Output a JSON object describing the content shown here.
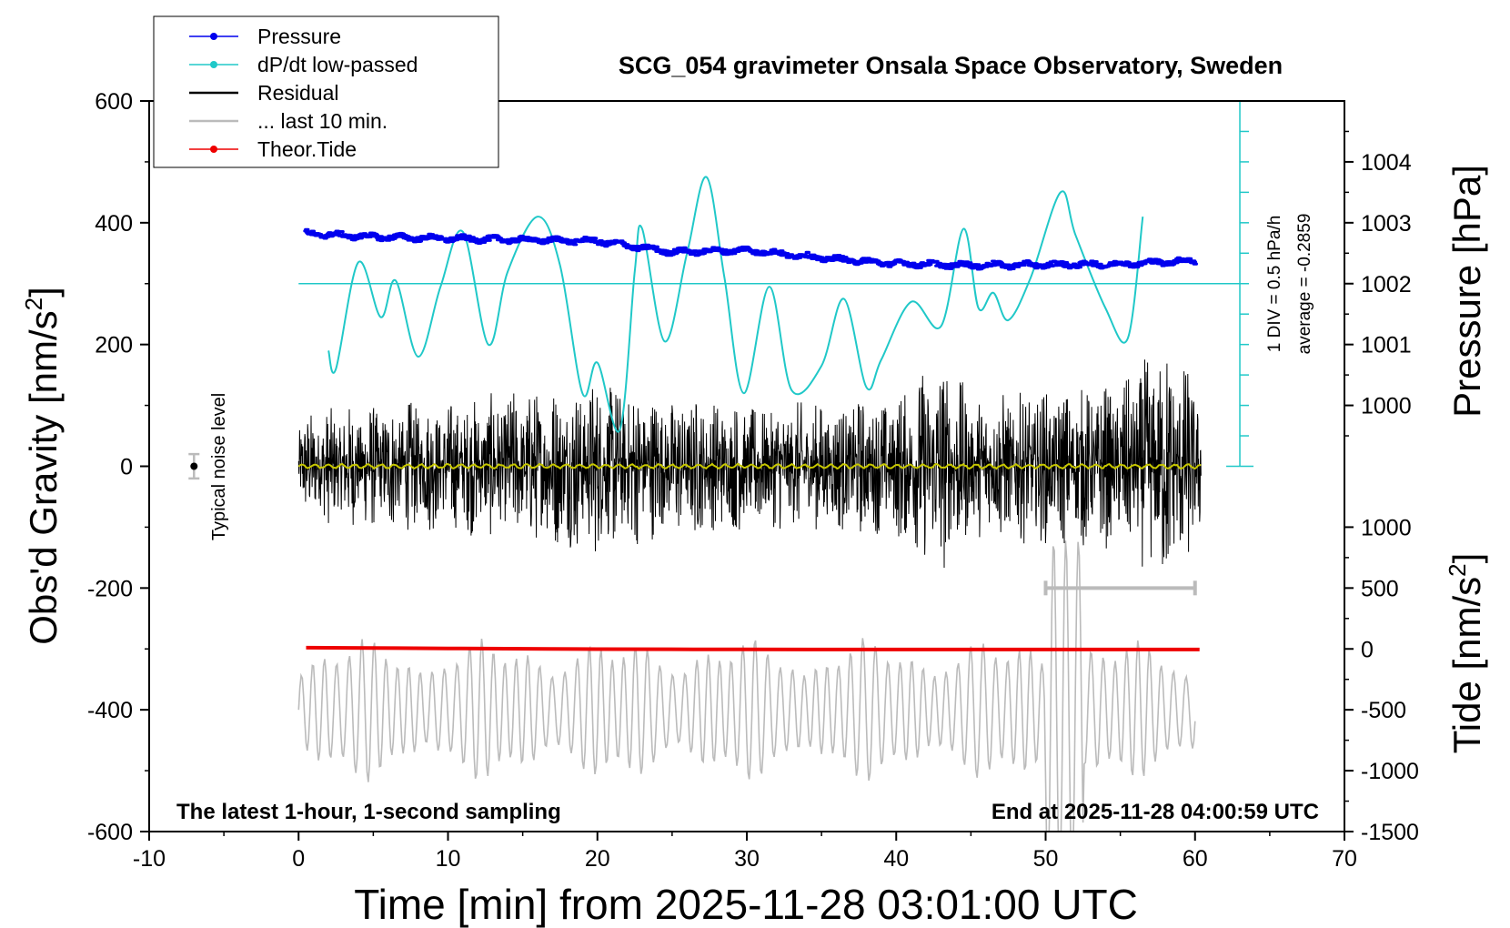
{
  "chart_data": {
    "type": "line",
    "title": "SCG_054 gravimeter Onsala Space Observatory, Sweden",
    "xlabel": "Time [min] from 2025-11-28 03:01:00 UTC",
    "ylabel": "Obs'd Gravity [nm/s²]",
    "ylabel_base": "Obs'd Gravity [nm/s",
    "ylabel_sup": "2",
    "ylabel_end": "]",
    "y2label": "Pressure [hPa]",
    "y3label_base": "Tide [nm/s",
    "y3label_sup": "2",
    "y3label_end": "]",
    "xlim": [
      -10,
      70
    ],
    "ylim": [
      -600,
      600
    ],
    "xticks": [
      -10,
      0,
      10,
      20,
      30,
      40,
      50,
      60,
      70
    ],
    "yticks": [
      -600,
      -400,
      -200,
      0,
      200,
      400,
      600
    ],
    "pressure_ticks": [
      1000,
      1001,
      1002,
      1003,
      1004
    ],
    "pressure_map": {
      "p_ref": 1002,
      "y_ref": 300,
      "units_per_hpa": 100
    },
    "tide_ticks": [
      -1500,
      -1000,
      -500,
      0,
      500,
      1000
    ],
    "tide_map": {
      "t_ref": 0,
      "y_ref": -300,
      "units_per_tide": 0.2
    },
    "annotations": {
      "bottom_left": "The latest 1-hour, 1-second sampling",
      "bottom_right": "End at 2025-11-28 04:00:59 UTC",
      "noise_label": "Typical noise level",
      "div_label": "1 DIV = 0.5 hPa/h",
      "avg_label": "average = -0.2859"
    },
    "legend_position": "top-left",
    "legend": [
      {
        "label": "Pressure",
        "color": "#0000ee",
        "style": "line-dot"
      },
      {
        "label": "dP/dt low-passed",
        "color": "#20c8c8",
        "style": "line-dot"
      },
      {
        "label": "Residual",
        "color": "#000000",
        "style": "line"
      },
      {
        "label": "... last 10 min.",
        "color": "#bbbbbb",
        "style": "line"
      },
      {
        "label": "Theor.Tide",
        "color": "#ee0000",
        "style": "line-dot"
      }
    ],
    "series": [
      {
        "name": "Pressure",
        "axis": "pressure",
        "color": "#0000ee",
        "x": [
          0.5,
          5,
          10,
          15,
          20,
          25,
          30,
          35,
          40,
          45,
          50,
          55,
          60
        ],
        "values": [
          1002.82,
          1002.77,
          1002.74,
          1002.72,
          1002.7,
          1002.52,
          1002.55,
          1002.42,
          1002.33,
          1002.3,
          1002.31,
          1002.32,
          1002.38
        ]
      },
      {
        "name": "dP/dt low-passed",
        "axis": "gravity",
        "color": "#20c8c8",
        "x": [
          2,
          2.5,
          4,
          5.5,
          6.5,
          8,
          9.5,
          11,
          12.7,
          14,
          16,
          17.5,
          19,
          20,
          21.5,
          22.5,
          23,
          24.5,
          26,
          27.3,
          28.5,
          29.8,
          31.5,
          33,
          35,
          36.5,
          38,
          39,
          41,
          43,
          44.5,
          45.5,
          46.5,
          47.5,
          49,
          51,
          52,
          54,
          55.5,
          56.5
        ],
        "values": [
          190,
          160,
          335,
          245,
          305,
          180,
          295,
          385,
          200,
          320,
          410,
          330,
          120,
          170,
          60,
          320,
          390,
          205,
          350,
          475,
          310,
          120,
          295,
          125,
          165,
          275,
          130,
          175,
          270,
          230,
          390,
          260,
          285,
          240,
          310,
          450,
          380,
          260,
          210,
          410
        ]
      },
      {
        "name": "Residual",
        "axis": "gravity",
        "color": "#000000",
        "x_start": 0,
        "x_end": 60.4,
        "envelope_x": [
          0,
          5,
          10,
          15,
          20,
          25,
          30,
          35,
          40,
          43,
          45,
          50,
          55,
          58,
          60
        ],
        "envelope_values": [
          90,
          110,
          110,
          130,
          150,
          120,
          110,
          110,
          120,
          190,
          120,
          130,
          140,
          210,
          150
        ]
      },
      {
        "name": "Residual smoothed",
        "axis": "gravity",
        "color": "#c8c800",
        "x": [
          0,
          60.4
        ],
        "values": [
          0,
          0
        ]
      },
      {
        "name": "... last 10 min.",
        "axis": "gravity",
        "color": "#bbbbbb",
        "x_start": 0,
        "x_end": 60,
        "center": -400,
        "amplitude": 120,
        "cycle_minutes": 0.8,
        "burst_x": [
          50,
          52.5
        ],
        "burst_amplitude": 280
      },
      {
        "name": "Theor.Tide",
        "axis": "tide",
        "color": "#ee0000",
        "x": [
          0.5,
          10,
          20,
          30,
          40,
          50,
          60.3
        ],
        "values": [
          10,
          4,
          -2,
          -4,
          -5,
          -5,
          -5
        ]
      }
    ],
    "noise_point": {
      "x": -7,
      "y": 0,
      "err": 20
    },
    "range_bar": {
      "x": [
        50,
        60
      ],
      "y": -200
    },
    "zero_line_y": 300,
    "div_scale": {
      "x": 63,
      "y_top": 600,
      "y_bottom": 0,
      "div": 50
    }
  }
}
